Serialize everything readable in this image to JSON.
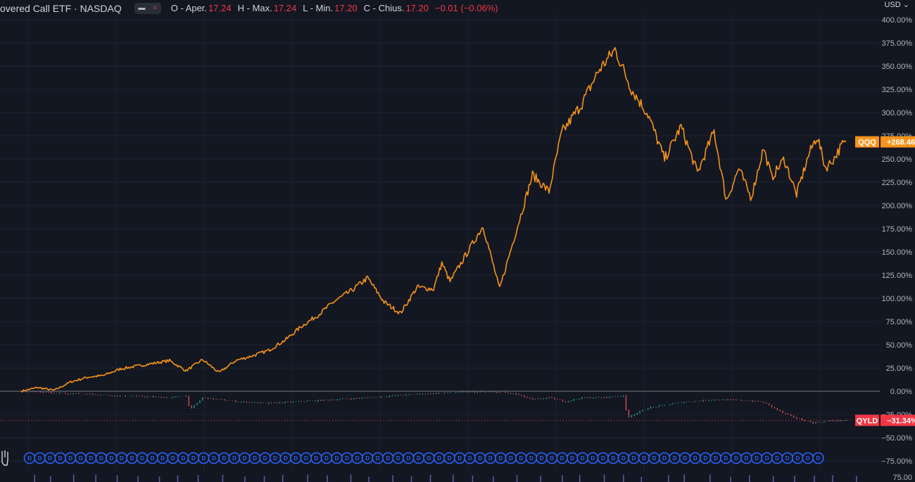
{
  "legend": {
    "title": "overed Call ETF · NASDAQ",
    "open_label": "O - Aper.",
    "open_value": "17.24",
    "high_label": "H - Max.",
    "high_value": "17.24",
    "low_label": "L - Min.",
    "low_value": "17.20",
    "close_label": "C - Chius.",
    "close_value": "17.20",
    "change_value": "−0.01 (−0.06%)"
  },
  "currency": "USD",
  "colors": {
    "background": "#131722",
    "grid": "#1f2330",
    "qqq_line": "#f7931a",
    "up": "#26a69a",
    "down": "#ef5350",
    "qyld_tag": "#f23645",
    "marker": "#2962ff",
    "zero_line": "#787b86"
  },
  "chart_data": {
    "type": "line",
    "title": "overed Call ETF · NASDAQ",
    "y_unit": "%",
    "ylim": [
      -75,
      400
    ],
    "y_ticks": [
      "400.00%",
      "375.00%",
      "350.00%",
      "325.00%",
      "300.00%",
      "275.00%",
      "250.00%",
      "225.00%",
      "200.00%",
      "175.00%",
      "150.00%",
      "125.00%",
      "100.00%",
      "75.00%",
      "50.00%",
      "25.00%",
      "0.00%",
      "−25.00%",
      "−50.00%",
      "−75.00%"
    ],
    "bottom_tick": "75.00",
    "grid": true,
    "series": [
      {
        "name": "QQQ",
        "last_value_label": "+268.46%",
        "style": "line",
        "x": [
          0,
          0.02,
          0.04,
          0.06,
          0.08,
          0.1,
          0.12,
          0.14,
          0.16,
          0.18,
          0.2,
          0.22,
          0.24,
          0.26,
          0.28,
          0.3,
          0.32,
          0.34,
          0.36,
          0.38,
          0.4,
          0.42,
          0.44,
          0.46,
          0.48,
          0.5,
          0.51,
          0.52,
          0.54,
          0.56,
          0.58,
          0.6,
          0.62,
          0.64,
          0.652,
          0.656,
          0.66,
          0.68,
          0.7,
          0.72,
          0.74,
          0.76,
          0.78,
          0.8,
          0.82,
          0.84,
          0.855,
          0.87,
          0.885,
          0.9,
          0.91,
          0.925,
          0.94,
          0.955,
          0.965,
          0.975,
          0.985,
          0.995,
          1.0
        ],
        "values": [
          0,
          4,
          1,
          10,
          15,
          17,
          24,
          27,
          30,
          33,
          22,
          34,
          20,
          33,
          38,
          44,
          55,
          70,
          82,
          97,
          108,
          122,
          96,
          84,
          112,
          110,
          138,
          118,
          148,
          178,
          110,
          172,
          233,
          215,
          265,
          280,
          284,
          310,
          345,
          368,
          325,
          298,
          250,
          285,
          235,
          280,
          205,
          240,
          208,
          262,
          230,
          250,
          212,
          255,
          275,
          240,
          250,
          265,
          268.46
        ]
      },
      {
        "name": "QYLD",
        "last_value_label": "−31.34%",
        "style": "candles",
        "x": [
          0,
          0.04,
          0.08,
          0.12,
          0.16,
          0.18,
          0.2,
          0.205,
          0.22,
          0.26,
          0.3,
          0.36,
          0.42,
          0.48,
          0.54,
          0.58,
          0.6,
          0.62,
          0.64,
          0.66,
          0.68,
          0.7,
          0.73,
          0.735,
          0.76,
          0.8,
          0.84,
          0.88,
          0.9,
          0.925,
          0.94,
          0.96,
          0.98,
          1.0
        ],
        "values": [
          0,
          -2,
          -3,
          -5,
          -6,
          -7,
          -5,
          -20,
          -7,
          -11,
          -13,
          -10,
          -7,
          -3,
          -1,
          -1,
          -3,
          -9,
          -7,
          -11,
          -7,
          -7,
          -5,
          -28,
          -18,
          -12,
          -9,
          -10,
          -12,
          -24,
          -29,
          -34,
          -32,
          -31.34
        ]
      }
    ],
    "markers": [
      {
        "label": "D"
      },
      {
        "label": "D"
      },
      {
        "label": "D"
      },
      {
        "label": "D"
      },
      {
        "label": "D"
      },
      {
        "label": "D"
      },
      {
        "label": "D"
      },
      {
        "label": "D"
      },
      {
        "label": "D"
      },
      {
        "label": "D"
      }
    ]
  }
}
